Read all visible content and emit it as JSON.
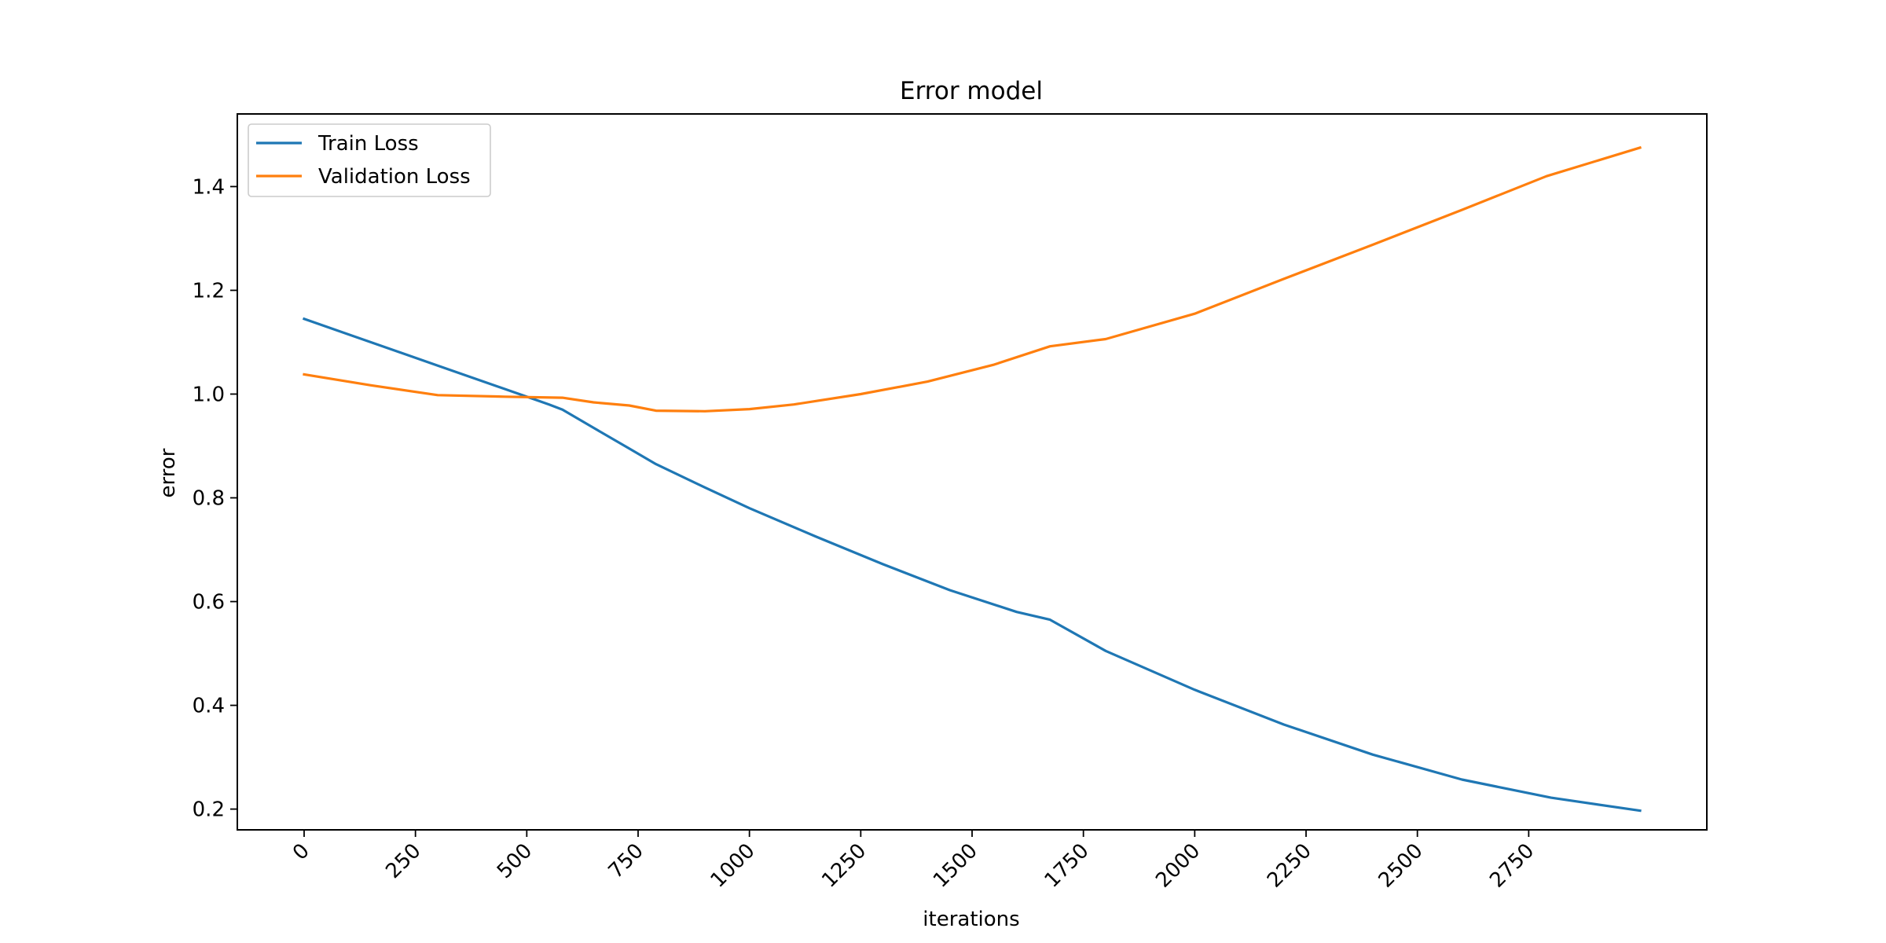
{
  "chart_data": {
    "type": "line",
    "title": "Error model",
    "xlabel": "iterations",
    "ylabel": "error",
    "xlim": [
      -150,
      3150
    ],
    "ylim": [
      0.16,
      1.54
    ],
    "xticks": [
      0,
      250,
      500,
      750,
      1000,
      1250,
      1500,
      1750,
      2000,
      2250,
      2500,
      2750
    ],
    "yticks": [
      0.2,
      0.4,
      0.6,
      0.8,
      1.0,
      1.2,
      1.4
    ],
    "xtick_labels": [
      "0",
      "250",
      "500",
      "750",
      "1000",
      "1250",
      "1500",
      "1750",
      "2000",
      "2250",
      "2500",
      "2750"
    ],
    "ytick_labels": [
      "0.2",
      "0.4",
      "0.6",
      "0.8",
      "1.0",
      "1.2",
      "1.4"
    ],
    "grid": false,
    "legend_position": "top-left",
    "series": [
      {
        "name": "Train Loss",
        "color": "#1f77b4",
        "x": [
          0,
          100,
          150,
          300,
          450,
          550,
          580,
          650,
          730,
          790,
          900,
          1000,
          1150,
          1300,
          1450,
          1600,
          1675,
          1800,
          2000,
          2200,
          2400,
          2600,
          2800,
          3000
        ],
        "y": [
          1.145,
          1.115,
          1.1,
          1.055,
          1.01,
          0.98,
          0.97,
          0.935,
          0.895,
          0.865,
          0.82,
          0.78,
          0.725,
          0.672,
          0.622,
          0.58,
          0.565,
          0.505,
          0.43,
          0.363,
          0.305,
          0.257,
          0.222,
          0.197
        ]
      },
      {
        "name": "Validation Loss",
        "color": "#ff7f0e",
        "x": [
          0,
          150,
          300,
          450,
          580,
          650,
          730,
          790,
          900,
          1000,
          1100,
          1250,
          1400,
          1550,
          1675,
          1800,
          2000,
          2200,
          2400,
          2600,
          2790,
          3000
        ],
        "y": [
          1.038,
          1.017,
          0.998,
          0.995,
          0.993,
          0.984,
          0.978,
          0.968,
          0.967,
          0.971,
          0.98,
          1.0,
          1.024,
          1.057,
          1.092,
          1.106,
          1.155,
          1.222,
          1.288,
          1.355,
          1.42,
          1.475
        ]
      }
    ]
  }
}
